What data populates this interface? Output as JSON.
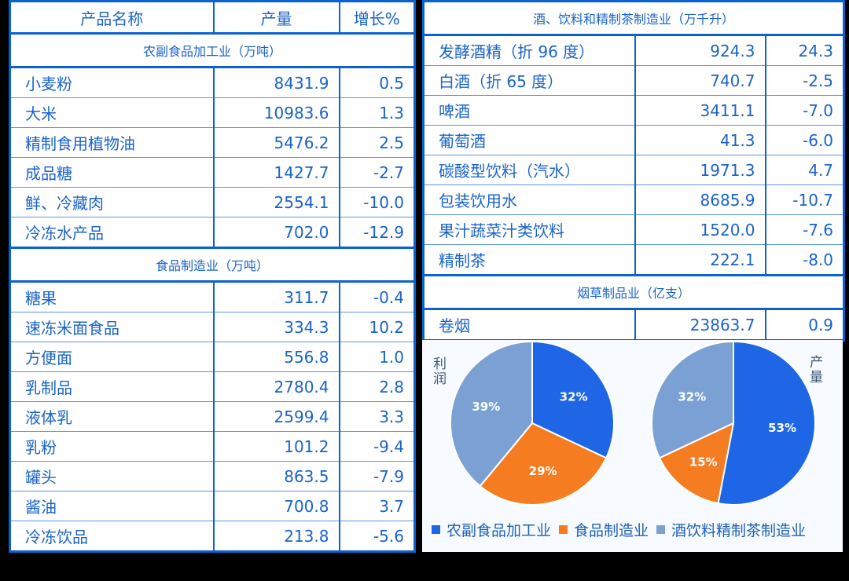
{
  "left_table": {
    "headers": [
      "产品名称",
      "产量",
      "增长%"
    ],
    "sections": [
      {
        "title": "农副食品加工业（万吨）",
        "rows": [
          {
            "name": "小麦粉",
            "output": "8431.9",
            "growth": "0.5"
          },
          {
            "name": "大米",
            "output": "10983.6",
            "growth": "1.3"
          },
          {
            "name": "精制食用植物油",
            "output": "5476.2",
            "growth": "2.5"
          },
          {
            "name": "成品糖",
            "output": "1427.7",
            "growth": "-2.7"
          },
          {
            "name": "鲜、冷藏肉",
            "output": "2554.1",
            "growth": "-10.0"
          },
          {
            "name": "冷冻水产品",
            "output": "702.0",
            "growth": "-12.9"
          }
        ]
      },
      {
        "title": "食品制造业（万吨）",
        "rows": [
          {
            "name": "糖果",
            "output": "311.7",
            "growth": "-0.4"
          },
          {
            "name": "速冻米面食品",
            "output": "334.3",
            "growth": "10.2"
          },
          {
            "name": "方便面",
            "output": "556.8",
            "growth": "1.0"
          },
          {
            "name": "乳制品",
            "output": "2780.4",
            "growth": "2.8"
          },
          {
            "name": "液体乳",
            "output": "2599.4",
            "growth": "3.3"
          },
          {
            "name": "乳粉",
            "output": "101.2",
            "growth": "-9.4"
          },
          {
            "name": "罐头",
            "output": "863.5",
            "growth": "-7.9"
          },
          {
            "name": "酱油",
            "output": "700.8",
            "growth": "3.7"
          },
          {
            "name": "冷冻饮品",
            "output": "213.8",
            "growth": "-5.6"
          }
        ]
      }
    ]
  },
  "right_table": {
    "sections": [
      {
        "title": "酒、饮料和精制茶制造业（万千升）",
        "rows": [
          {
            "name": "发酵酒精（折 96 度）",
            "output": "924.3",
            "growth": "24.3"
          },
          {
            "name": "白酒（折 65 度）",
            "output": "740.7",
            "growth": "-2.5"
          },
          {
            "name": "啤酒",
            "output": "3411.1",
            "growth": "-7.0"
          },
          {
            "name": "葡萄酒",
            "output": "41.3",
            "growth": "-6.0"
          },
          {
            "name": "碳酸型饮料（汽水）",
            "output": "1971.3",
            "growth": "4.7"
          },
          {
            "name": "包装饮用水",
            "output": "8685.9",
            "growth": "-10.7"
          },
          {
            "name": "果汁蔬菜汁类饮料",
            "output": "1520.0",
            "growth": "-7.6"
          },
          {
            "name": "精制茶",
            "output": "222.1",
            "growth": "-8.0"
          }
        ]
      },
      {
        "title": "烟草制品业（亿支）",
        "rows": [
          {
            "name": "卷烟",
            "output": "23863.7",
            "growth": "0.9"
          }
        ]
      }
    ]
  },
  "colors": {
    "agri": "#1e66e6",
    "food": "#f57c20",
    "beverage": "#7ba1d4",
    "border": "#0b61d0",
    "text": "#1a63c9"
  },
  "chart_data": [
    {
      "type": "pie",
      "title": "利润",
      "categories": [
        "农副食品加工业",
        "食品制造业",
        "酒饮料精制茶制造业"
      ],
      "values": [
        32,
        29,
        39
      ],
      "labels": [
        "32%",
        "29%",
        "39%"
      ]
    },
    {
      "type": "pie",
      "title": "产量",
      "categories": [
        "农副食品加工业",
        "食品制造业",
        "酒饮料精制茶制造业"
      ],
      "values": [
        53,
        15,
        32
      ],
      "labels": [
        "53%",
        "15%",
        "32%"
      ]
    }
  ],
  "legend": [
    "农副食品加工业",
    "食品制造业",
    "酒饮料精制茶制造业"
  ]
}
